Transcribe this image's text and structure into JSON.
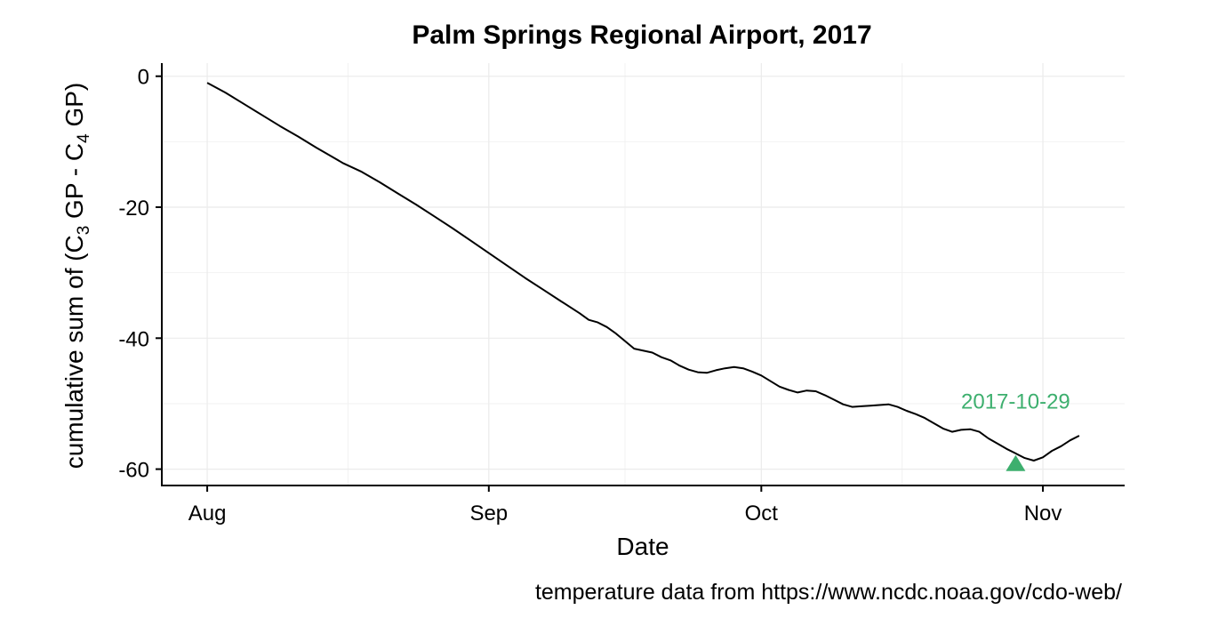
{
  "chart_data": {
    "type": "line",
    "title": "Palm Springs Regional Airport, 2017",
    "xlabel": "Date",
    "ylabel": {
      "text": "cumulative sum of (C3 GP - C4 GP)",
      "part1": "cumulative sum of (C",
      "sub1": "3",
      "part2": " GP - C",
      "sub2": "4",
      "part3": " GP)"
    },
    "caption": "temperature data from https://www.ncdc.noaa.gov/cdo-web/",
    "xlim": [
      "2017-07-27",
      "2017-11-10"
    ],
    "ylim": [
      -62.5,
      2
    ],
    "x_ticks": [
      {
        "label": "Aug",
        "date": "2017-08-01"
      },
      {
        "label": "Sep",
        "date": "2017-09-01"
      },
      {
        "label": "Oct",
        "date": "2017-10-01"
      },
      {
        "label": "Nov",
        "date": "2017-11-01"
      }
    ],
    "y_ticks": [
      0,
      -20,
      -40,
      -60
    ],
    "grid": true,
    "line_color": "#000000",
    "series": [
      {
        "points": [
          [
            "2017-08-01",
            -1.0
          ],
          [
            "2017-08-03",
            -2.5
          ],
          [
            "2017-08-05",
            -4.2
          ],
          [
            "2017-08-07",
            -5.9
          ],
          [
            "2017-08-09",
            -7.6
          ],
          [
            "2017-08-11",
            -9.2
          ],
          [
            "2017-08-13",
            -10.9
          ],
          [
            "2017-08-14",
            -11.7
          ],
          [
            "2017-08-16",
            -13.3
          ],
          [
            "2017-08-18",
            -14.6
          ],
          [
            "2017-08-20",
            -16.2
          ],
          [
            "2017-08-22",
            -17.9
          ],
          [
            "2017-08-24",
            -19.6
          ],
          [
            "2017-08-26",
            -21.4
          ],
          [
            "2017-08-28",
            -23.2
          ],
          [
            "2017-08-30",
            -25.1
          ],
          [
            "2017-09-01",
            -27.0
          ],
          [
            "2017-09-03",
            -28.9
          ],
          [
            "2017-09-05",
            -30.8
          ],
          [
            "2017-09-07",
            -32.6
          ],
          [
            "2017-09-09",
            -34.4
          ],
          [
            "2017-09-11",
            -36.2
          ],
          [
            "2017-09-12",
            -37.2
          ],
          [
            "2017-09-13",
            -37.6
          ],
          [
            "2017-09-14",
            -38.3
          ],
          [
            "2017-09-15",
            -39.3
          ],
          [
            "2017-09-17",
            -41.6
          ],
          [
            "2017-09-19",
            -42.2
          ],
          [
            "2017-09-20",
            -42.9
          ],
          [
            "2017-09-21",
            -43.4
          ],
          [
            "2017-09-22",
            -44.2
          ],
          [
            "2017-09-23",
            -44.8
          ],
          [
            "2017-09-24",
            -45.2
          ],
          [
            "2017-09-25",
            -45.3
          ],
          [
            "2017-09-26",
            -44.9
          ],
          [
            "2017-09-27",
            -44.6
          ],
          [
            "2017-09-28",
            -44.4
          ],
          [
            "2017-09-29",
            -44.6
          ],
          [
            "2017-09-30",
            -45.1
          ],
          [
            "2017-10-01",
            -45.7
          ],
          [
            "2017-10-03",
            -47.4
          ],
          [
            "2017-10-04",
            -47.9
          ],
          [
            "2017-10-05",
            -48.3
          ],
          [
            "2017-10-06",
            -48.0
          ],
          [
            "2017-10-07",
            -48.1
          ],
          [
            "2017-10-08",
            -48.7
          ],
          [
            "2017-10-09",
            -49.4
          ],
          [
            "2017-10-10",
            -50.1
          ],
          [
            "2017-10-11",
            -50.5
          ],
          [
            "2017-10-12",
            -50.4
          ],
          [
            "2017-10-13",
            -50.3
          ],
          [
            "2017-10-15",
            -50.1
          ],
          [
            "2017-10-16",
            -50.5
          ],
          [
            "2017-10-17",
            -51.1
          ],
          [
            "2017-10-18",
            -51.6
          ],
          [
            "2017-10-19",
            -52.2
          ],
          [
            "2017-10-20",
            -53.0
          ],
          [
            "2017-10-21",
            -53.8
          ],
          [
            "2017-10-22",
            -54.3
          ],
          [
            "2017-10-23",
            -54.0
          ],
          [
            "2017-10-24",
            -53.9
          ],
          [
            "2017-10-25",
            -54.3
          ],
          [
            "2017-10-26",
            -55.3
          ],
          [
            "2017-10-27",
            -56.1
          ],
          [
            "2017-10-28",
            -56.9
          ],
          [
            "2017-10-29",
            -57.6
          ],
          [
            "2017-10-30",
            -58.3
          ],
          [
            "2017-10-31",
            -58.7
          ],
          [
            "2017-11-01",
            -58.2
          ],
          [
            "2017-11-02",
            -57.2
          ],
          [
            "2017-11-03",
            -56.5
          ],
          [
            "2017-11-04",
            -55.6
          ],
          [
            "2017-11-05",
            -54.9
          ]
        ]
      }
    ],
    "annotation": {
      "label": "2017-10-29",
      "date": "2017-10-29",
      "value": -59.2,
      "marker": "triangle",
      "color": "#3daf6e"
    }
  }
}
